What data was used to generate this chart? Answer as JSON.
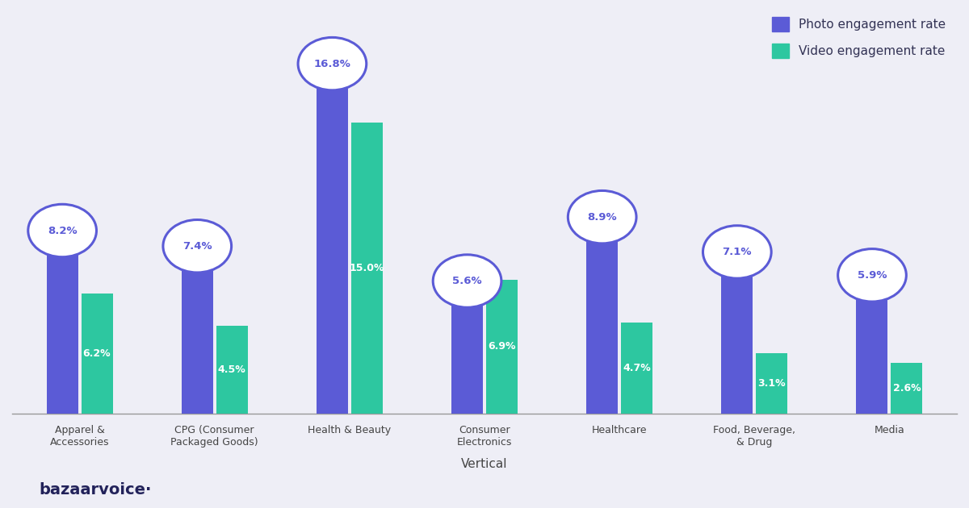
{
  "categories": [
    "Apparel &\nAccessories",
    "CPG (Consumer\nPackaged Goods)",
    "Health & Beauty",
    "Consumer\nElectronics",
    "Healthcare",
    "Food, Beverage,\n& Drug",
    "Media"
  ],
  "photo_values": [
    8.2,
    7.4,
    16.8,
    5.6,
    8.9,
    7.1,
    5.9
  ],
  "video_values": [
    6.2,
    4.5,
    15.0,
    6.9,
    4.7,
    3.1,
    2.6
  ],
  "photo_color": "#5B5BD6",
  "video_color": "#2DC7A0",
  "background_color": "#EEEEF6",
  "xlabel": "Vertical",
  "legend_photo": "Photo engagement rate",
  "legend_video": "Video engagement rate",
  "brand_text": "bazaarvoice·",
  "circle_edge_color": "#5B5BD6",
  "circle_face_color": "#FFFFFF",
  "circle_text_color": "#5B5BD6",
  "video_text_color": "#FFFFFF",
  "ylim": [
    0,
    20
  ]
}
